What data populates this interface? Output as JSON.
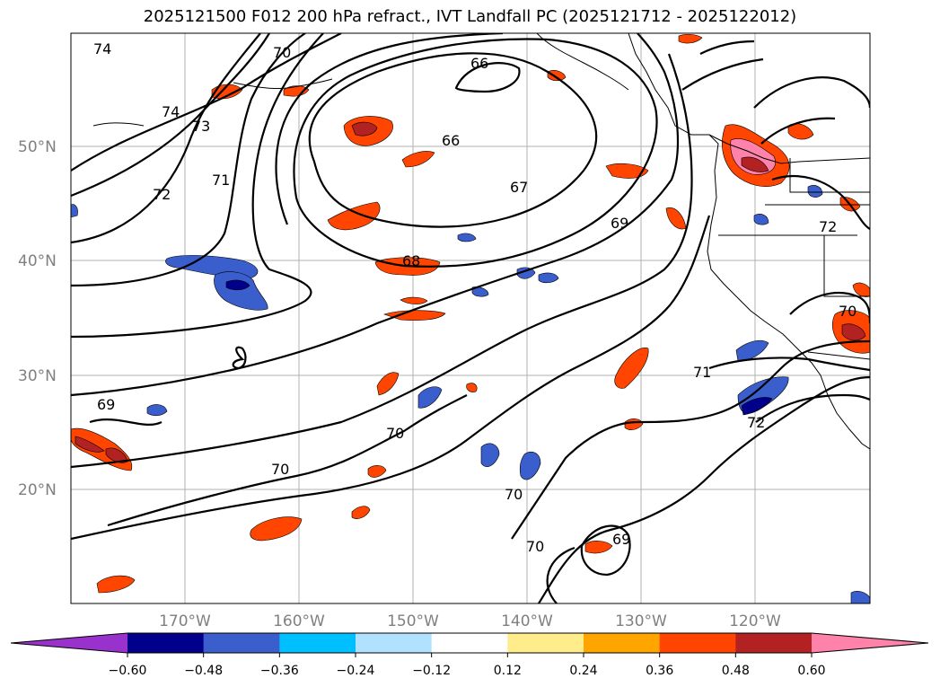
{
  "title": "2025121500 F012 200 hPa refract., IVT Landfall PC (2025121712 - 2025122012)",
  "map": {
    "lat_labels": [
      "50°N",
      "40°N",
      "30°N",
      "20°N"
    ],
    "lon_labels": [
      "170°W",
      "160°W",
      "150°W",
      "140°W",
      "130°W",
      "120°W"
    ],
    "contour_labels": [
      "74",
      "70",
      "74",
      "73",
      "72",
      "71",
      "66",
      "66",
      "67",
      "69",
      "68",
      "72",
      "70",
      "71",
      "72",
      "69",
      "70",
      "70",
      "70",
      "70",
      "69"
    ]
  },
  "colorbar": {
    "ticks": [
      "−0.60",
      "−0.48",
      "−0.36",
      "−0.24",
      "−0.12",
      "0.12",
      "0.24",
      "0.36",
      "0.48",
      "0.60"
    ],
    "colors": [
      "#9932cc",
      "#00008b",
      "#3a5fcd",
      "#00bfff",
      "#b0e2ff",
      "#ffffff",
      "#ffec8b",
      "#ffa500",
      "#ff4500",
      "#b22222",
      "#ff82ab"
    ]
  }
}
